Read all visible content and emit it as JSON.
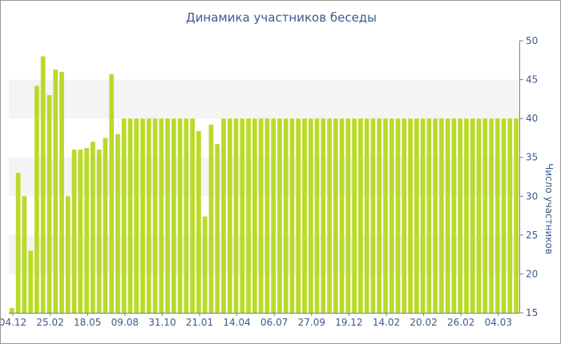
{
  "chart_data": {
    "type": "bar",
    "title": "Динамика участников беседы",
    "xlabel": "",
    "ylabel": "Число участников",
    "ylim": [
      15,
      50
    ],
    "yticks": [
      15,
      20,
      25,
      30,
      35,
      40,
      45,
      50
    ],
    "y_axis_side": "right",
    "grid": "alternating horizontal bands",
    "x_tick_labels": [
      "04.12",
      "25.02",
      "18.05",
      "09.08",
      "31.10",
      "21.01",
      "14.04",
      "06.07",
      "27.09",
      "19.12",
      "14.02",
      "20.02",
      "26.02",
      "04.03"
    ],
    "series": [
      {
        "color": "#bada2a",
        "values": [
          15.6,
          33,
          30,
          23,
          44.2,
          48,
          43,
          46.3,
          46,
          30,
          36,
          36,
          36.2,
          37,
          36,
          37.5,
          45.7,
          38,
          40,
          40,
          40,
          40,
          40,
          40,
          40,
          40,
          40,
          40,
          40,
          40,
          38.4,
          27.4,
          39.2,
          36.7,
          40,
          40,
          40,
          40,
          40,
          40,
          40,
          40,
          40,
          40,
          40,
          40,
          40,
          40,
          40,
          40,
          40,
          40,
          40,
          40,
          40,
          40,
          40,
          40,
          40,
          40,
          40,
          40,
          40,
          40,
          40,
          40,
          40,
          40,
          40,
          40,
          40,
          40,
          40,
          40,
          40,
          40,
          40,
          40,
          40,
          40,
          40,
          40
        ]
      }
    ]
  }
}
